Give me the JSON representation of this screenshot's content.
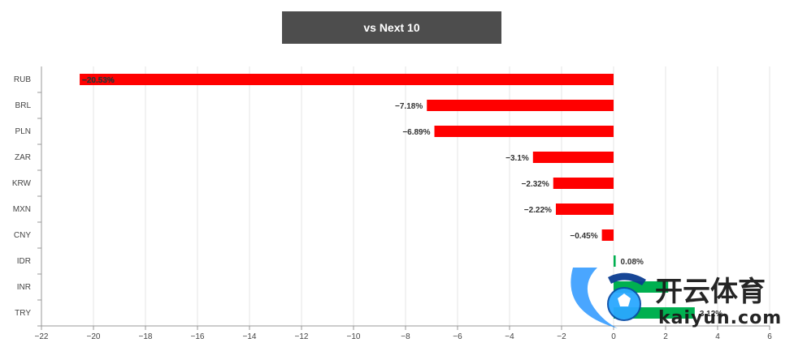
{
  "header": {
    "tab_label": "vs Next 10"
  },
  "watermark": {
    "cn": "开云体育",
    "en": "kaiyun.com"
  },
  "colors": {
    "negative": "#ff0000",
    "positive": "#00b050",
    "grid": "#e6e6e6",
    "axis": "#999999"
  },
  "chart_data": {
    "type": "bar",
    "orientation": "horizontal",
    "title": "",
    "xlabel": "",
    "ylabel": "",
    "categories": [
      "RUB",
      "BRL",
      "PLN",
      "ZAR",
      "KRW",
      "MXN",
      "CNY",
      "IDR",
      "INR",
      "TRY"
    ],
    "values": [
      -20.53,
      -7.18,
      -6.89,
      -3.1,
      -2.32,
      -2.22,
      -0.45,
      0.08,
      2.1,
      3.12
    ],
    "labels": [
      "-20.53%",
      "-7.18%",
      "-6.89%",
      "-3.1%",
      "-2.32%",
      "-2.22%",
      "-0.45%",
      "0.08%",
      "",
      "3.12%"
    ],
    "xlim": [
      -22,
      6
    ],
    "xticks": [
      -22,
      -20,
      -18,
      -16,
      -14,
      -12,
      -10,
      -8,
      -6,
      -4,
      -2,
      0,
      2,
      4,
      6
    ],
    "grid": true,
    "legend": "none"
  }
}
